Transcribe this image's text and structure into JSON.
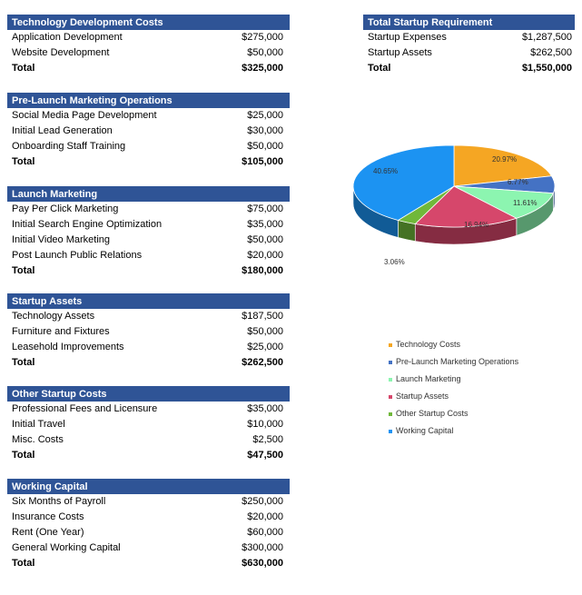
{
  "sections": [
    {
      "title": "Technology Development Costs",
      "rows": [
        {
          "label": "Application Development",
          "value": "$275,000"
        },
        {
          "label": "Website Development",
          "value": "$50,000"
        }
      ],
      "total": {
        "label": "Total",
        "value": "$325,000"
      }
    },
    {
      "title": "Pre-Launch Marketing Operations",
      "rows": [
        {
          "label": "Social Media Page Development",
          "value": "$25,000"
        },
        {
          "label": "Initial Lead Generation",
          "value": "$30,000"
        },
        {
          "label": "Onboarding Staff Training",
          "value": "$50,000"
        }
      ],
      "total": {
        "label": "Total",
        "value": "$105,000"
      }
    },
    {
      "title": "Launch Marketing",
      "rows": [
        {
          "label": "Pay Per Click Marketing",
          "value": "$75,000"
        },
        {
          "label": "Initial Search Engine Optimization",
          "value": "$35,000"
        },
        {
          "label": "Initial Video Marketing",
          "value": "$50,000"
        },
        {
          "label": "Post Launch Public Relations",
          "value": "$20,000"
        }
      ],
      "total": {
        "label": "Total",
        "value": "$180,000"
      }
    },
    {
      "title": "Startup Assets",
      "rows": [
        {
          "label": "Technology Assets",
          "value": "$187,500"
        },
        {
          "label": "Furniture and Fixtures",
          "value": "$50,000"
        },
        {
          "label": "Leasehold Improvements",
          "value": "$25,000"
        }
      ],
      "total": {
        "label": "Total",
        "value": "$262,500"
      }
    },
    {
      "title": "Other Startup Costs",
      "rows": [
        {
          "label": "Professional Fees and Licensure",
          "value": "$35,000"
        },
        {
          "label": "Initial Travel",
          "value": "$10,000"
        },
        {
          "label": "Misc. Costs",
          "value": "$2,500"
        }
      ],
      "total": {
        "label": "Total",
        "value": "$47,500"
      }
    },
    {
      "title": "Working Capital",
      "rows": [
        {
          "label": "Six Months of Payroll",
          "value": "$250,000"
        },
        {
          "label": "Insurance Costs",
          "value": "$20,000"
        },
        {
          "label": "Rent (One Year)",
          "value": "$60,000"
        },
        {
          "label": "General Working Capital",
          "value": "$300,000"
        }
      ],
      "total": {
        "label": "Total",
        "value": "$630,000"
      }
    }
  ],
  "summary": {
    "title": "Total Startup Requirement",
    "rows": [
      {
        "label": "Startup Expenses",
        "value": "$1,287,500"
      },
      {
        "label": "Startup Assets",
        "value": "$262,500"
      }
    ],
    "total": {
      "label": "Total",
      "value": "$1,550,000"
    }
  },
  "chart_data": {
    "type": "pie",
    "title": "",
    "slices": [
      {
        "name": "Technology Costs",
        "percent": 20.97,
        "label": "20.97%",
        "color": "#f5a623"
      },
      {
        "name": "Pre-Launch Marketing Operations",
        "percent": 6.77,
        "label": "6.77%",
        "color": "#4472c4"
      },
      {
        "name": "Launch Marketing",
        "percent": 11.61,
        "label": "11.61%",
        "color": "#8cf5b0"
      },
      {
        "name": "Startup Assets",
        "percent": 16.94,
        "label": "16.94%",
        "color": "#d6476b"
      },
      {
        "name": "Other Startup Costs",
        "percent": 3.06,
        "label": "3.06%",
        "color": "#70b83a"
      },
      {
        "name": "Working Capital",
        "percent": 40.65,
        "label": "40.65%",
        "color": "#1c93f2"
      }
    ],
    "legend_position": "below-right"
  }
}
